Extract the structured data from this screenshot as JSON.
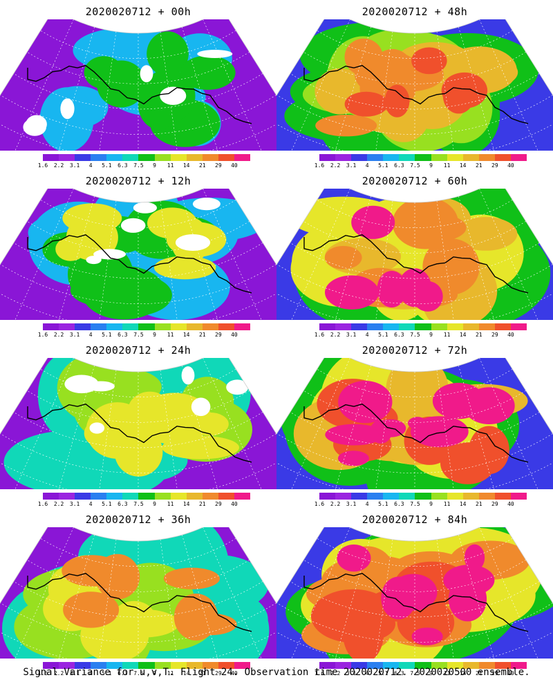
{
  "panels": [
    {
      "title": "2020020712 + 00h",
      "intensity": 0.15
    },
    {
      "title": "2020020712 + 48h",
      "intensity": 0.62
    },
    {
      "title": "2020020712 + 12h",
      "intensity": 0.3
    },
    {
      "title": "2020020712 + 60h",
      "intensity": 0.7
    },
    {
      "title": "2020020712 + 24h",
      "intensity": 0.42
    },
    {
      "title": "2020020712 + 72h",
      "intensity": 0.8
    },
    {
      "title": "2020020712 + 36h",
      "intensity": 0.52
    },
    {
      "title": "2020020712 + 84h",
      "intensity": 0.85
    }
  ],
  "colorbar": {
    "labels": [
      "1.6",
      "2.2",
      "3.1",
      "4",
      "5.1",
      "6.3",
      "7.5",
      "9",
      "11",
      "14",
      "21",
      "29",
      "40"
    ],
    "colors": [
      "#8a16d6",
      "#9a24e0",
      "#3a3ae6",
      "#2a7ff0",
      "#18b6f0",
      "#10d8b8",
      "#10c018",
      "#98e020",
      "#e6e62a",
      "#e8b82c",
      "#f08a2c",
      "#f0502c",
      "#f01a8a"
    ]
  },
  "caption": "Signal Variance for u,v,T. Flight 24. Observation time 2020020712. 2020020500 ensemble."
}
